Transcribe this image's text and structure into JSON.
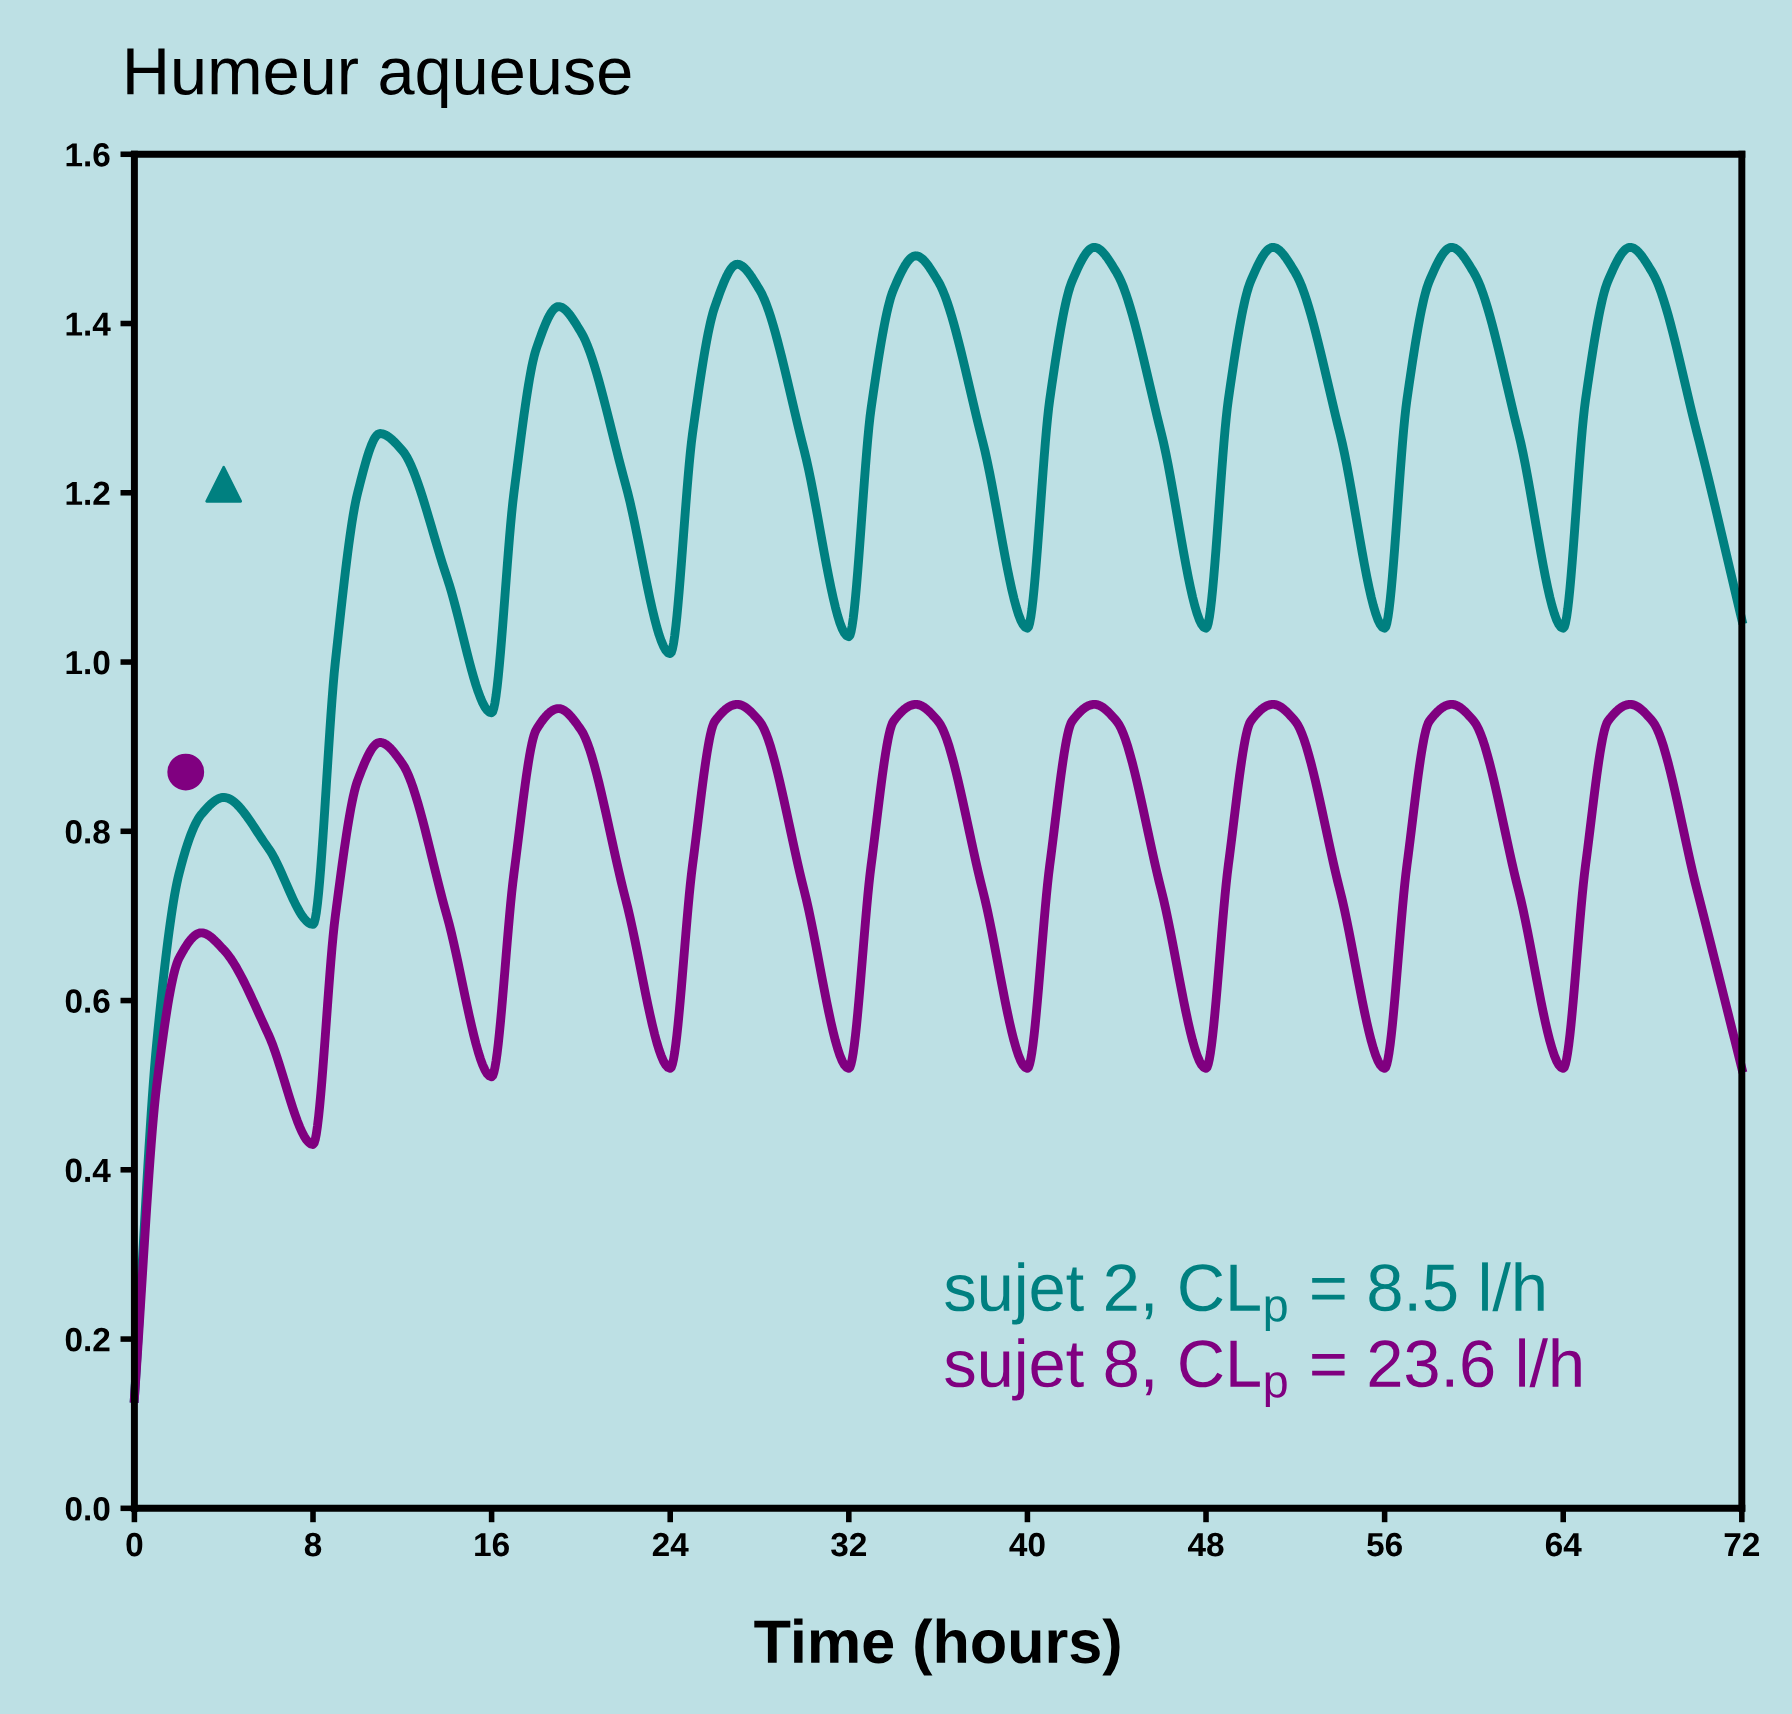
{
  "chart_data": {
    "type": "line",
    "title": "Humeur aqueuse",
    "xlabel": "Time (hours)",
    "xlim": [
      0,
      72
    ],
    "ylim": [
      0,
      1.6
    ],
    "xticks": [
      0,
      8,
      16,
      24,
      32,
      40,
      48,
      56,
      64,
      72
    ],
    "yticks": [
      {
        "value": 0,
        "label": "0.0"
      },
      {
        "value": 0.2,
        "label": "0.2"
      },
      {
        "value": 0.4,
        "label": "0.4"
      },
      {
        "value": 0.6,
        "label": "0.6"
      },
      {
        "value": 0.8,
        "label": "0.8"
      },
      {
        "value": 1.0,
        "label": "1.0"
      },
      {
        "value": 1.2,
        "label": "1.2"
      },
      {
        "value": 1.4,
        "label": "1.4"
      },
      {
        "value": 1.6,
        "label": "1.6"
      }
    ],
    "grid": false,
    "legend": "bottom right",
    "series": [
      {
        "name": "sujet 2, CL$_{p}$ = 8.5 l/h",
        "color": "#008080",
        "marker": "none",
        "x": [
          0,
          1,
          2,
          3,
          4,
          6,
          8,
          9,
          10,
          11,
          12,
          14,
          16,
          17,
          18,
          19,
          20,
          22,
          24,
          25,
          26,
          27,
          28,
          30,
          32,
          33,
          34,
          35,
          36,
          38,
          40,
          41,
          42,
          43,
          44,
          46,
          48,
          49,
          50,
          51,
          52,
          54,
          56,
          57,
          58,
          59,
          60,
          62,
          64,
          65,
          66,
          67,
          68,
          70,
          72
        ],
        "values": [
          0.13,
          0.55,
          0.75,
          0.82,
          0.84,
          0.78,
          0.69,
          1.0,
          1.2,
          1.27,
          1.25,
          1.1,
          0.94,
          1.2,
          1.37,
          1.42,
          1.39,
          1.21,
          1.01,
          1.27,
          1.42,
          1.47,
          1.44,
          1.25,
          1.03,
          1.3,
          1.44,
          1.48,
          1.45,
          1.26,
          1.04,
          1.31,
          1.45,
          1.49,
          1.46,
          1.27,
          1.04,
          1.31,
          1.45,
          1.49,
          1.46,
          1.27,
          1.04,
          1.31,
          1.45,
          1.49,
          1.46,
          1.27,
          1.04,
          1.31,
          1.45,
          1.49,
          1.46,
          1.27,
          1.05
        ]
      },
      {
        "name": "sujet 8, CL$_{p}$ = 23.6 l/h",
        "color": "#800080",
        "marker": "none",
        "x": [
          0,
          1,
          2,
          3,
          4,
          6,
          8,
          9,
          10,
          11,
          12,
          14,
          16,
          17,
          18,
          19,
          20,
          22,
          24,
          25,
          26,
          27,
          28,
          30,
          32,
          33,
          34,
          35,
          36,
          38,
          40,
          41,
          42,
          43,
          44,
          46,
          48,
          49,
          50,
          51,
          52,
          54,
          56,
          57,
          58,
          59,
          60,
          62,
          64,
          65,
          66,
          67,
          68,
          70,
          72
        ],
        "values": [
          0.13,
          0.5,
          0.65,
          0.68,
          0.66,
          0.56,
          0.43,
          0.7,
          0.86,
          0.905,
          0.88,
          0.7,
          0.51,
          0.75,
          0.92,
          0.945,
          0.92,
          0.72,
          0.52,
          0.76,
          0.93,
          0.95,
          0.93,
          0.73,
          0.52,
          0.76,
          0.93,
          0.95,
          0.93,
          0.73,
          0.52,
          0.76,
          0.93,
          0.95,
          0.93,
          0.73,
          0.52,
          0.76,
          0.93,
          0.95,
          0.93,
          0.73,
          0.52,
          0.76,
          0.93,
          0.95,
          0.93,
          0.73,
          0.52,
          0.76,
          0.93,
          0.95,
          0.93,
          0.73,
          0.52
        ]
      },
      {
        "color": "#008080",
        "type": "scatter",
        "marker": "triangle",
        "x": [
          4
        ],
        "values": [
          1.21
        ]
      },
      {
        "color": "#800080",
        "type": "scatter",
        "marker": "circle",
        "x": [
          2.3
        ],
        "values": [
          0.87
        ]
      }
    ]
  }
}
